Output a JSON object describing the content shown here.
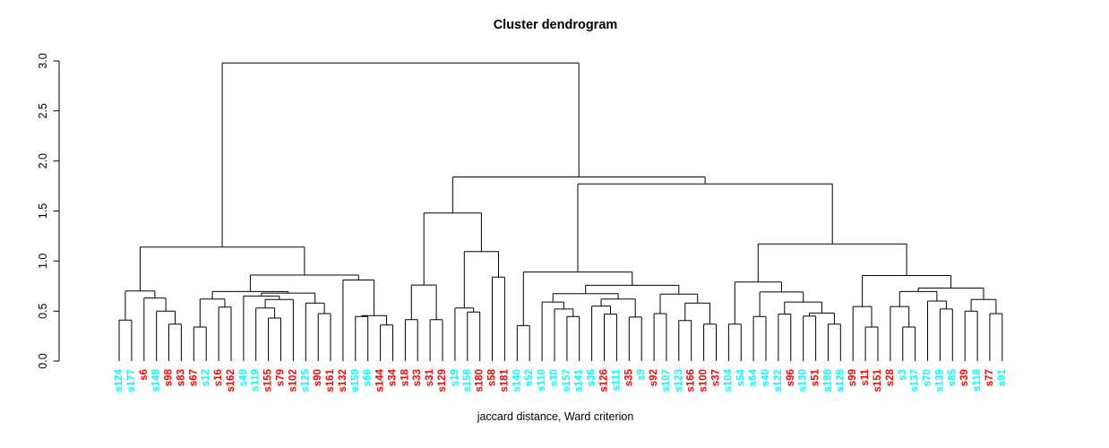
{
  "chart_data": {
    "type": "dendrogram",
    "title": "Cluster dendrogram",
    "xlabel": "jaccard distance, Ward criterion",
    "ylabel": "",
    "ylim": [
      0,
      3
    ],
    "yticks": [
      "0.0",
      "0.5",
      "1.0",
      "1.5",
      "2.0",
      "2.5",
      "3.0"
    ],
    "ytick_values": [
      0,
      0.5,
      1.0,
      1.5,
      2.0,
      2.5,
      3.0
    ],
    "grid": false,
    "line_color": "#000000",
    "leaf_colors": {
      "cyan": "#00FFFF",
      "red": "#FF0000"
    },
    "leaves": [
      {
        "label": "s124",
        "color": "cyan"
      },
      {
        "label": "s177",
        "color": "cyan"
      },
      {
        "label": "s6",
        "color": "red"
      },
      {
        "label": "s148",
        "color": "cyan"
      },
      {
        "label": "s98",
        "color": "red"
      },
      {
        "label": "s83",
        "color": "red"
      },
      {
        "label": "s67",
        "color": "red"
      },
      {
        "label": "s12",
        "color": "cyan"
      },
      {
        "label": "s16",
        "color": "red"
      },
      {
        "label": "s162",
        "color": "red"
      },
      {
        "label": "s49",
        "color": "cyan"
      },
      {
        "label": "s119",
        "color": "cyan"
      },
      {
        "label": "s155",
        "color": "red"
      },
      {
        "label": "s79",
        "color": "red"
      },
      {
        "label": "s102",
        "color": "red"
      },
      {
        "label": "s125",
        "color": "cyan"
      },
      {
        "label": "s90",
        "color": "red"
      },
      {
        "label": "s161",
        "color": "red"
      },
      {
        "label": "s132",
        "color": "red"
      },
      {
        "label": "s159",
        "color": "cyan"
      },
      {
        "label": "s66",
        "color": "cyan"
      },
      {
        "label": "s144",
        "color": "red"
      },
      {
        "label": "s34",
        "color": "red"
      },
      {
        "label": "s18",
        "color": "red"
      },
      {
        "label": "s33",
        "color": "red"
      },
      {
        "label": "s31",
        "color": "red"
      },
      {
        "label": "s129",
        "color": "red"
      },
      {
        "label": "s19",
        "color": "cyan"
      },
      {
        "label": "s158",
        "color": "cyan"
      },
      {
        "label": "s180",
        "color": "red"
      },
      {
        "label": "s58",
        "color": "red"
      },
      {
        "label": "s181",
        "color": "red"
      },
      {
        "label": "s140",
        "color": "cyan"
      },
      {
        "label": "s52",
        "color": "cyan"
      },
      {
        "label": "s110",
        "color": "cyan"
      },
      {
        "label": "s30",
        "color": "cyan"
      },
      {
        "label": "s157",
        "color": "cyan"
      },
      {
        "label": "s141",
        "color": "cyan"
      },
      {
        "label": "s36",
        "color": "cyan"
      },
      {
        "label": "s126",
        "color": "red"
      },
      {
        "label": "s111",
        "color": "cyan"
      },
      {
        "label": "s35",
        "color": "red"
      },
      {
        "label": "s9",
        "color": "cyan"
      },
      {
        "label": "s92",
        "color": "red"
      },
      {
        "label": "s107",
        "color": "cyan"
      },
      {
        "label": "s123",
        "color": "cyan"
      },
      {
        "label": "s166",
        "color": "red"
      },
      {
        "label": "s100",
        "color": "red"
      },
      {
        "label": "s37",
        "color": "red"
      },
      {
        "label": "s104",
        "color": "cyan"
      },
      {
        "label": "s54",
        "color": "cyan"
      },
      {
        "label": "s64",
        "color": "cyan"
      },
      {
        "label": "s40",
        "color": "cyan"
      },
      {
        "label": "s122",
        "color": "cyan"
      },
      {
        "label": "s96",
        "color": "red"
      },
      {
        "label": "s130",
        "color": "cyan"
      },
      {
        "label": "s51",
        "color": "red"
      },
      {
        "label": "s188",
        "color": "cyan"
      },
      {
        "label": "s128",
        "color": "cyan"
      },
      {
        "label": "s99",
        "color": "red"
      },
      {
        "label": "s11",
        "color": "red"
      },
      {
        "label": "s151",
        "color": "red"
      },
      {
        "label": "s28",
        "color": "red"
      },
      {
        "label": "s3",
        "color": "cyan"
      },
      {
        "label": "s137",
        "color": "cyan"
      },
      {
        "label": "s70",
        "color": "cyan"
      },
      {
        "label": "s139",
        "color": "cyan"
      },
      {
        "label": "s85",
        "color": "cyan"
      },
      {
        "label": "s39",
        "color": "red"
      },
      {
        "label": "s118",
        "color": "cyan"
      },
      {
        "label": "s77",
        "color": "red"
      },
      {
        "label": "s91",
        "color": "cyan"
      }
    ],
    "tree": [
      2.98,
      [
        1.14,
        [
          0.7,
          [
            0.41,
            0,
            1
          ],
          [
            0.63,
            2,
            [
              0.5,
              3,
              [
                0.37,
                4,
                5
              ]
            ]
          ]
        ],
        [
          0.86,
          [
            0.695,
            [
              0.62,
              [
                0.34,
                6,
                7
              ],
              [
                0.54,
                8,
                9
              ]
            ],
            [
              0.68,
              [
                0.65,
                10,
                [
                  0.615,
                  [
                    0.53,
                    11,
                    [
                      0.43,
                      12,
                      13
                    ]
                  ],
                  14
                ]
              ],
              [
                0.58,
                15,
                [
                  0.475,
                  16,
                  17
                ]
              ]
            ]
          ],
          [
            0.81,
            18,
            [
              0.455,
              [
                0.445,
                19,
                20
              ],
              [
                0.36,
                21,
                22
              ]
            ]
          ]
        ]
      ],
      [
        1.84,
        [
          1.48,
          [
            0.76,
            [
              0.415,
              23,
              24
            ],
            [
              0.415,
              25,
              26
            ]
          ],
          [
            1.095,
            [
              0.53,
              27,
              [
                0.49,
                28,
                29
              ]
            ],
            [
              0.84,
              30,
              31
            ]
          ]
        ],
        [
          1.77,
          [
            0.89,
            [
              0.355,
              32,
              33
            ],
            [
              0.758,
              [
                0.674,
                [
                  0.59,
                  34,
                  [
                    0.52,
                    35,
                    [
                      0.445,
                      36,
                      37
                    ]
                  ]
                ],
                [
                  0.62,
                  [
                    0.55,
                    38,
                    [
                      0.47,
                      39,
                      40
                    ]
                  ],
                  [
                    0.44,
                    41,
                    42
                  ]
                ]
              ],
              [
                0.67,
                [
                  0.475,
                  43,
                  44
                ],
                [
                  0.58,
                  [
                    0.405,
                    45,
                    46
                  ],
                  [
                    0.37,
                    47,
                    48
                  ]
                ]
              ]
            ]
          ],
          [
            1.17,
            [
              0.79,
              [
                0.37,
                49,
                50
              ],
              [
                0.69,
                [
                  0.445,
                  51,
                  52
                ],
                [
                  0.59,
                  [
                    0.47,
                    53,
                    54
                  ],
                  [
                    0.48,
                    [
                      0.45,
                      55,
                      56
                    ],
                    [
                      0.37,
                      57,
                      58
                    ]
                  ]
                ]
              ]
            ],
            [
              0.855,
              [
                0.545,
                59,
                [
                  0.34,
                  60,
                  61
                ]
              ],
              [
                0.73,
                [
                  0.695,
                  [
                    0.545,
                    62,
                    [
                      0.34,
                      63,
                      64
                    ]
                  ],
                  [
                    0.6,
                    65,
                    [
                      0.52,
                      66,
                      67
                    ]
                  ]
                ],
                [
                  0.615,
                  [
                    0.5,
                    68,
                    69
                  ],
                  [
                    0.475,
                    70,
                    71
                  ]
                ]
              ]
            ]
          ]
        ]
      ]
    ]
  }
}
